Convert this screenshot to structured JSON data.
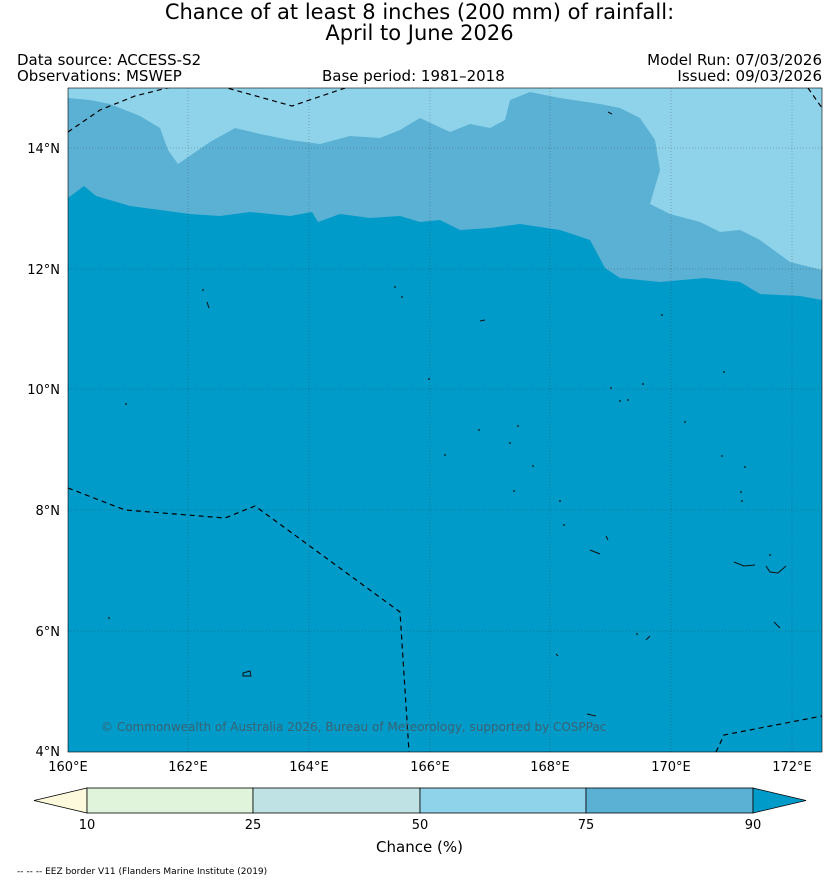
{
  "title": {
    "line1": "Chance of at least 8 inches (200  mm) of rainfall:",
    "line2": "April to June 2026"
  },
  "meta": {
    "data_source": "Data source: ACCESS-S2",
    "observations": "Observations: MSWEP",
    "base_period": "Base period: 1981–2018",
    "model_run": "Model Run: 07/03/2026",
    "issued": "Issued: 09/03/2026"
  },
  "map": {
    "lat_ticks": [
      "14°N",
      "12°N",
      "10°N",
      "8°N",
      "6°N",
      "4°N"
    ],
    "lon_ticks": [
      "160°E",
      "162°E",
      "164°E",
      "166°E",
      "168°E",
      "170°E",
      "172°E"
    ],
    "copyright": "© Commonwealth of Australia 2026, Bureau of Meteorology, supported by COSPPac",
    "region": {
      "lat_min": 4,
      "lat_max": 15,
      "lon_min": 160,
      "lon_max": 172.5
    }
  },
  "colorbar": {
    "title": "Chance (%)",
    "tick_labels": [
      "10",
      "25",
      "50",
      "75",
      "90"
    ],
    "classes": [
      {
        "range": "<10",
        "color": "#fdf9dc"
      },
      {
        "range": "10-25",
        "color": "#e0f4dc"
      },
      {
        "range": "25-50",
        "color": "#bfe3e4"
      },
      {
        "range": "50-75",
        "color": "#8fd3ea"
      },
      {
        "range": "75-90",
        "color": "#5ab1d4"
      },
      {
        "range": ">90",
        "color": "#009bc9"
      }
    ]
  },
  "footnote": "-- -- -- EEZ border V11 (Flanders Marine Institute (2019)"
}
